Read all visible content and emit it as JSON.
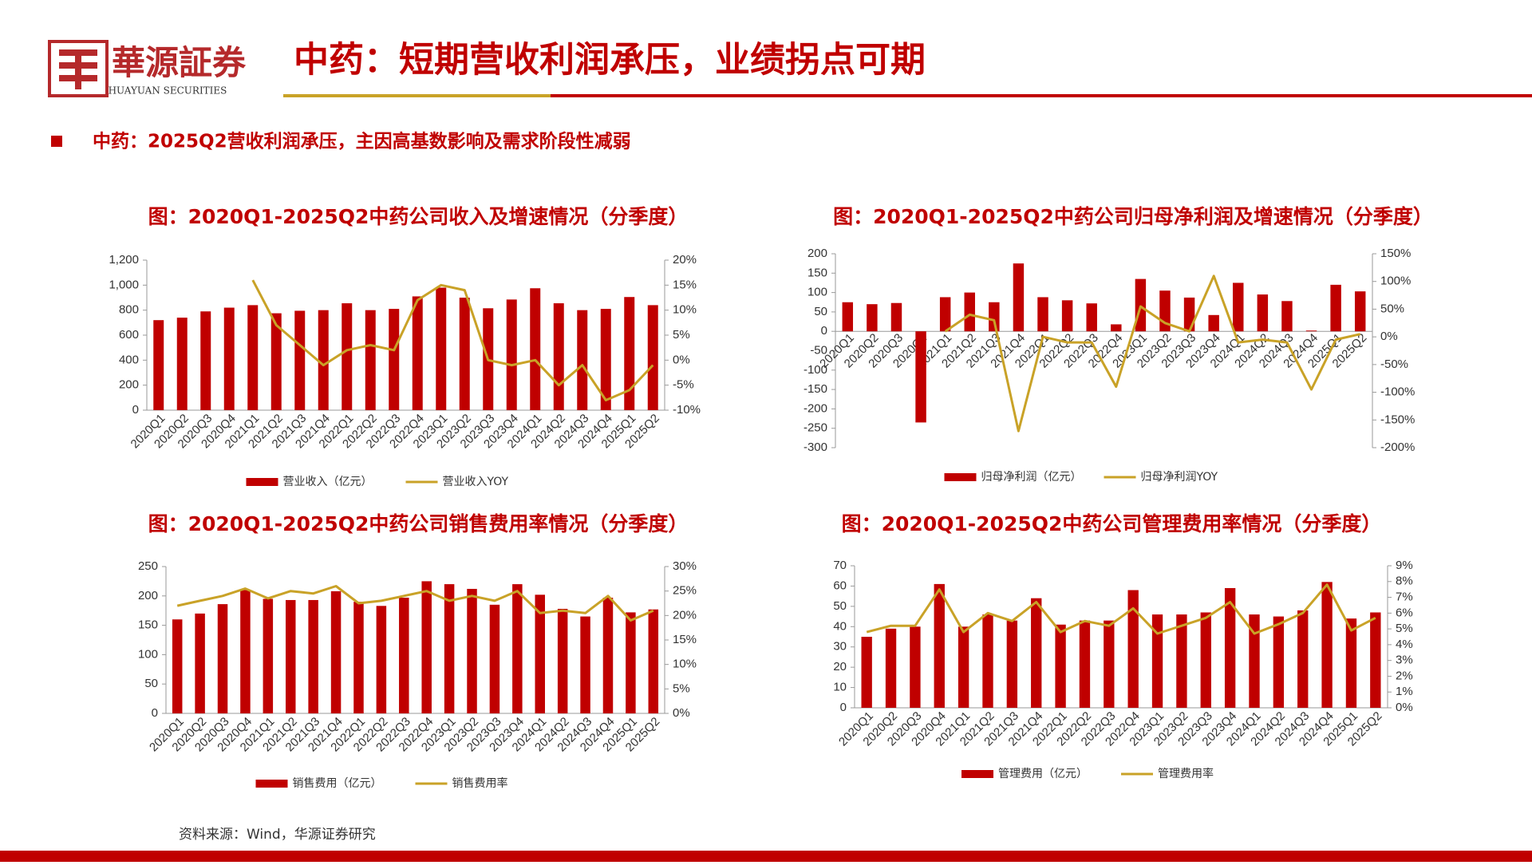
{
  "header": {
    "logo_text": "華源証券",
    "logo_subtext": "HUAYUAN SECURITIES",
    "title": "中药：短期营收利润承压，业绩拐点可期",
    "bullet": "中药：2025Q2营收利润承压，主因高基数影响及需求阶段性减弱"
  },
  "footer": {
    "source": "资料来源：Wind，华源证券研究"
  },
  "chart_data": [
    {
      "type": "bar",
      "title": "图：2020Q1-2025Q2中药公司收入及增速情况（分季度）",
      "categories": [
        "2020Q1",
        "2020Q2",
        "2020Q3",
        "2020Q4",
        "2021Q1",
        "2021Q2",
        "2021Q3",
        "2021Q4",
        "2022Q1",
        "2022Q2",
        "2022Q3",
        "2022Q4",
        "2023Q1",
        "2023Q2",
        "2023Q3",
        "2023Q4",
        "2024Q1",
        "2024Q2",
        "2024Q3",
        "2024Q4",
        "2025Q1",
        "2025Q2"
      ],
      "series": [
        {
          "name": "营业收入（亿元）",
          "type": "bar",
          "color": "#c00000",
          "values": [
            720,
            740,
            790,
            820,
            840,
            775,
            795,
            800,
            855,
            800,
            810,
            910,
            980,
            900,
            815,
            885,
            975,
            855,
            800,
            810,
            905,
            840
          ]
        },
        {
          "name": "营业收入YOY",
          "type": "line",
          "axis": "y2",
          "color": "#c9a227",
          "values": [
            null,
            null,
            null,
            null,
            16,
            7,
            3,
            -1,
            2,
            3,
            2,
            12,
            15,
            14,
            0,
            -1,
            0,
            -5,
            -1,
            -8,
            -6,
            -1
          ]
        }
      ],
      "ylim": [
        0,
        1200
      ],
      "yticks": [
        0,
        200,
        400,
        600,
        800,
        {
          "value": 1000,
          "label": "1,000"
        },
        {
          "value": 1200,
          "label": "1,200"
        }
      ],
      "y2lim": [
        -10,
        20
      ],
      "y2ticks": [
        {
          "value": -10,
          "label": "-10%"
        },
        {
          "value": -5,
          "label": "-5%"
        },
        {
          "value": 0,
          "label": "0%"
        },
        {
          "value": 5,
          "label": "5%"
        },
        {
          "value": 10,
          "label": "10%"
        },
        {
          "value": 15,
          "label": "15%"
        },
        {
          "value": 20,
          "label": "20%"
        }
      ],
      "grid": false,
      "legend": "bottom"
    },
    {
      "type": "bar",
      "title": "图：2020Q1-2025Q2中药公司归母净利润及增速情况（分季度）",
      "categories": [
        "2020Q1",
        "2020Q2",
        "2020Q3",
        "2020Q4",
        "2021Q1",
        "2021Q2",
        "2021Q3",
        "2021Q4",
        "2022Q1",
        "2022Q2",
        "2022Q3",
        "2022Q4",
        "2023Q1",
        "2023Q2",
        "2023Q3",
        "2023Q4",
        "2024Q1",
        "2024Q2",
        "2024Q3",
        "2024Q4",
        "2025Q1",
        "2025Q2"
      ],
      "series": [
        {
          "name": "归母净利润（亿元）",
          "type": "bar",
          "color": "#c00000",
          "values": [
            75,
            70,
            73,
            -235,
            88,
            100,
            75,
            175,
            88,
            80,
            72,
            18,
            135,
            105,
            87,
            42,
            125,
            95,
            78,
            2,
            120,
            103
          ]
        },
        {
          "name": "归母净利润YOY",
          "type": "line",
          "axis": "y2",
          "color": "#c9a227",
          "values": [
            null,
            null,
            null,
            null,
            10,
            40,
            30,
            -170,
            0,
            -10,
            -10,
            -90,
            55,
            25,
            10,
            110,
            -10,
            -5,
            -10,
            -95,
            -5,
            5
          ]
        }
      ],
      "ylim": [
        -300,
        200
      ],
      "yticks": [
        -300,
        -250,
        -200,
        -150,
        -100,
        -50,
        0,
        50,
        100,
        150,
        200
      ],
      "y2lim": [
        -200,
        150
      ],
      "y2ticks": [
        {
          "value": -200,
          "label": "-200%"
        },
        {
          "value": -150,
          "label": "-150%"
        },
        {
          "value": -100,
          "label": "-100%"
        },
        {
          "value": -50,
          "label": "-50%"
        },
        {
          "value": 0,
          "label": "0%"
        },
        {
          "value": 50,
          "label": "50%"
        },
        {
          "value": 100,
          "label": "100%"
        },
        {
          "value": 150,
          "label": "150%"
        }
      ],
      "grid": false,
      "legend": "bottom"
    },
    {
      "type": "bar",
      "title": "图：2020Q1-2025Q2中药公司销售费用率情况（分季度）",
      "categories": [
        "2020Q1",
        "2020Q2",
        "2020Q3",
        "2020Q4",
        "2021Q1",
        "2021Q2",
        "2021Q3",
        "2021Q4",
        "2022Q1",
        "2022Q2",
        "2022Q3",
        "2022Q4",
        "2023Q1",
        "2023Q2",
        "2023Q3",
        "2023Q4",
        "2024Q1",
        "2024Q2",
        "2024Q3",
        "2024Q4",
        "2025Q1",
        "2025Q2"
      ],
      "series": [
        {
          "name": "销售费用（亿元）",
          "type": "bar",
          "color": "#c00000",
          "values": [
            160,
            170,
            186,
            210,
            195,
            193,
            193,
            208,
            190,
            183,
            197,
            225,
            220,
            212,
            185,
            220,
            202,
            178,
            165,
            197,
            172,
            177
          ]
        },
        {
          "name": "销售费用率",
          "type": "line",
          "axis": "y2",
          "color": "#c9a227",
          "values": [
            22,
            23,
            24,
            25.5,
            23.5,
            25,
            24.5,
            26,
            22.5,
            23,
            24,
            25,
            23,
            24,
            23,
            25,
            20.5,
            21,
            20.5,
            24,
            19,
            21
          ]
        }
      ],
      "ylim": [
        0,
        250
      ],
      "yticks": [
        0,
        50,
        100,
        150,
        200,
        250
      ],
      "y2lim": [
        0,
        30
      ],
      "y2ticks": [
        {
          "value": 0,
          "label": "0%"
        },
        {
          "value": 5,
          "label": "5%"
        },
        {
          "value": 10,
          "label": "10%"
        },
        {
          "value": 15,
          "label": "15%"
        },
        {
          "value": 20,
          "label": "20%"
        },
        {
          "value": 25,
          "label": "25%"
        },
        {
          "value": 30,
          "label": "30%"
        }
      ],
      "grid": false,
      "legend": "bottom"
    },
    {
      "type": "bar",
      "title": "图：2020Q1-2025Q2中药公司管理费用率情况（分季度）",
      "categories": [
        "2020Q1",
        "2020Q2",
        "2020Q3",
        "2020Q4",
        "2021Q1",
        "2021Q2",
        "2021Q3",
        "2021Q4",
        "2022Q1",
        "2022Q2",
        "2022Q3",
        "2022Q4",
        "2023Q1",
        "2023Q2",
        "2023Q3",
        "2023Q4",
        "2024Q1",
        "2024Q2",
        "2024Q3",
        "2024Q4",
        "2025Q1",
        "2025Q2"
      ],
      "series": [
        {
          "name": "管理费用（亿元）",
          "type": "bar",
          "color": "#c00000",
          "values": [
            35,
            39,
            40,
            61,
            40,
            46,
            43,
            54,
            41,
            43,
            43,
            58,
            46,
            46,
            47,
            59,
            46,
            45,
            48,
            62,
            44,
            47
          ]
        },
        {
          "name": "管理费用率",
          "type": "line",
          "axis": "y2",
          "color": "#c9a227",
          "values": [
            4.8,
            5.2,
            5.2,
            7.5,
            4.8,
            6,
            5.5,
            6.7,
            4.8,
            5.5,
            5.2,
            6.3,
            4.7,
            5.2,
            5.7,
            6.7,
            4.7,
            5.3,
            6,
            7.8,
            4.9,
            5.7
          ]
        }
      ],
      "ylim": [
        0,
        70
      ],
      "yticks": [
        0,
        10,
        20,
        30,
        40,
        50,
        60,
        70
      ],
      "y2lim": [
        0,
        9
      ],
      "y2ticks": [
        {
          "value": 0,
          "label": "0%"
        },
        {
          "value": 1,
          "label": "1%"
        },
        {
          "value": 2,
          "label": "2%"
        },
        {
          "value": 3,
          "label": "3%"
        },
        {
          "value": 4,
          "label": "4%"
        },
        {
          "value": 5,
          "label": "5%"
        },
        {
          "value": 6,
          "label": "6%"
        },
        {
          "value": 7,
          "label": "7%"
        },
        {
          "value": 8,
          "label": "8%"
        },
        {
          "value": 9,
          "label": "9%"
        }
      ],
      "grid": false,
      "legend": "bottom"
    }
  ]
}
